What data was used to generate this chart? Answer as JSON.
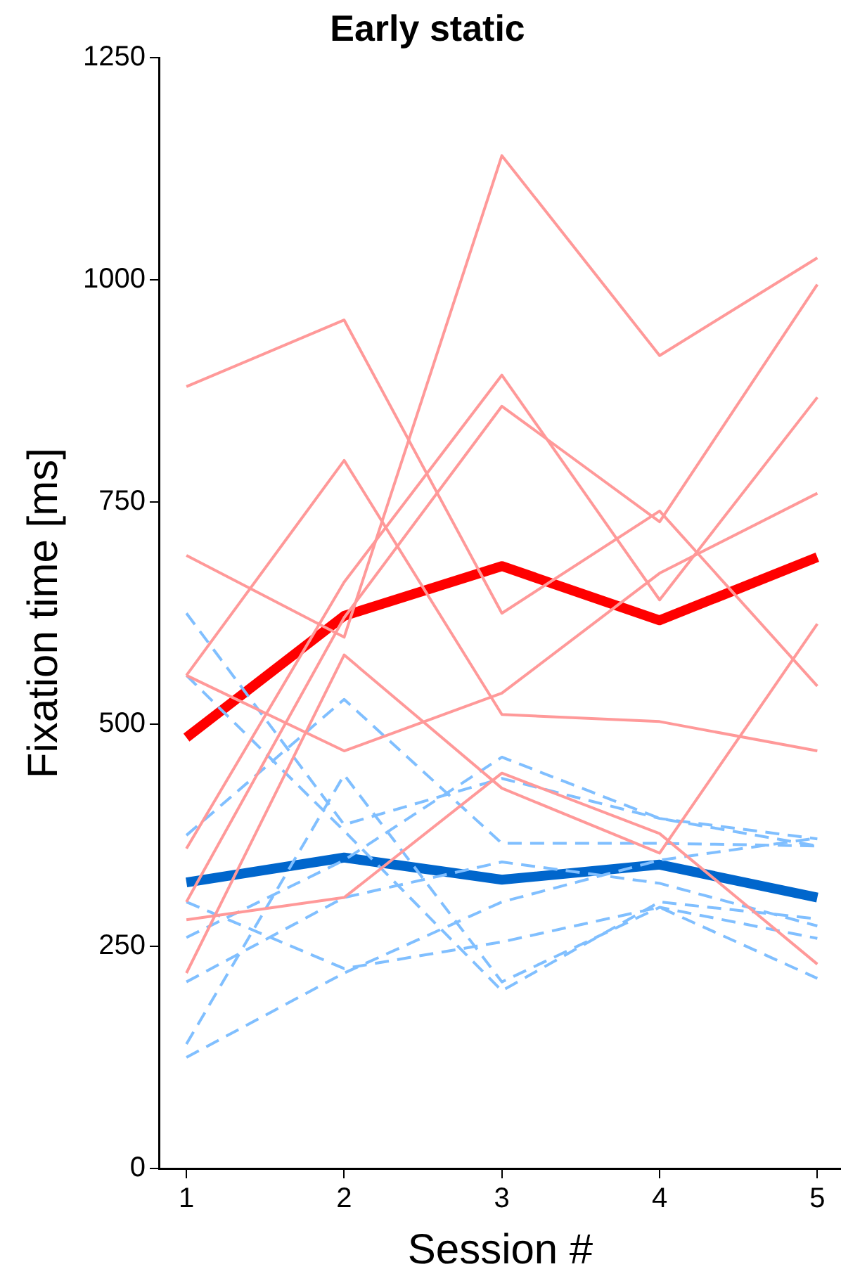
{
  "chart_data": {
    "type": "line",
    "title": "Early static",
    "xlabel": "Session #",
    "ylabel": "Fixation time [ms]",
    "x": [
      1,
      2,
      3,
      4,
      5
    ],
    "xlim": [
      0.83,
      5.15
    ],
    "xticks": [
      1,
      2,
      3,
      4,
      5
    ],
    "ylim": [
      0,
      1250
    ],
    "yticks": [
      0,
      250,
      500,
      750,
      1000,
      1250
    ],
    "grid": false,
    "legend": false,
    "marker": "none",
    "series": [
      {
        "color": "#ff9999",
        "line_style": "solid",
        "values": [
          880,
          955,
          625,
          740,
          543
        ]
      },
      {
        "color": "#ff9999",
        "line_style": "solid",
        "values": [
          690,
          598,
          1140,
          915,
          1025
        ]
      },
      {
        "color": "#ff9999",
        "line_style": "solid",
        "values": [
          360,
          660,
          893,
          640,
          868
        ]
      },
      {
        "color": "#ff9999",
        "line_style": "solid",
        "values": [
          300,
          620,
          858,
          728,
          995
        ]
      },
      {
        "color": "#ff9999",
        "line_style": "solid",
        "values": [
          555,
          797,
          511,
          503,
          470
        ]
      },
      {
        "color": "#ff9999",
        "line_style": "solid",
        "values": [
          555,
          470,
          535,
          670,
          760
        ]
      },
      {
        "color": "#ff9999",
        "line_style": "solid",
        "values": [
          280,
          305,
          445,
          377,
          230
        ]
      },
      {
        "color": "#ff9999",
        "line_style": "solid",
        "values": [
          220,
          578,
          428,
          355,
          613
        ]
      },
      {
        "color": "#80bfff",
        "line_style": "dashed",
        "values": [
          625,
          387,
          439,
          394,
          371
        ]
      },
      {
        "color": "#80bfff",
        "line_style": "dashed",
        "values": [
          555,
          380,
          200,
          300,
          281
        ]
      },
      {
        "color": "#80bfff",
        "line_style": "dashed",
        "values": [
          375,
          528,
          366,
          366,
          363
        ]
      },
      {
        "color": "#80bfff",
        "line_style": "dashed",
        "values": [
          300,
          225,
          255,
          294,
          214
        ]
      },
      {
        "color": "#80bfff",
        "line_style": "dashed",
        "values": [
          260,
          347,
          463,
          394,
          363
        ]
      },
      {
        "color": "#80bfff",
        "line_style": "dashed",
        "values": [
          210,
          305,
          345,
          321,
          273
        ]
      },
      {
        "color": "#80bfff",
        "line_style": "dashed",
        "values": [
          140,
          443,
          210,
          294,
          259
        ]
      },
      {
        "color": "#80bfff",
        "line_style": "dashed",
        "values": [
          125,
          220,
          300,
          347,
          372
        ]
      },
      {
        "color": "#ff0000",
        "line_style": "solid",
        "values": [
          485,
          622,
          678,
          617,
          688
        ]
      },
      {
        "color": "#0066cc",
        "line_style": "solid",
        "values": [
          322,
          350,
          325,
          342,
          305
        ]
      }
    ]
  }
}
